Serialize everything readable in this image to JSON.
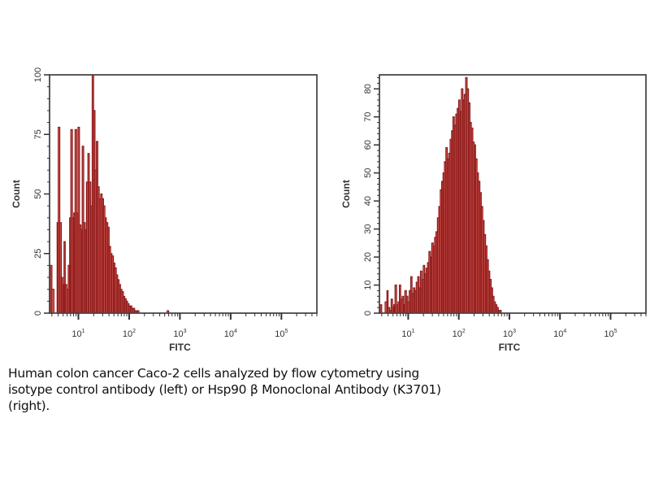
{
  "chart_data": [
    {
      "type": "histogram",
      "panel": "left",
      "subtitle": "isotype control antibody",
      "xlabel": "FITC",
      "ylabel": "Count",
      "xscale": "log",
      "xlim": [
        2.7,
        500000
      ],
      "ylim": [
        0,
        100
      ],
      "x_tick_labels": [
        "10",
        "10",
        "10",
        "10",
        "10"
      ],
      "x_tick_exponents": [
        "1",
        "2",
        "3",
        "4",
        "5"
      ],
      "x_tick_values": [
        10,
        100,
        1000,
        10000,
        100000
      ],
      "y_tick_labels": [
        "0",
        "25",
        "50",
        "75",
        "100"
      ],
      "y_tick_values": [
        0,
        25,
        50,
        75,
        100
      ],
      "fill_color": "#f07068",
      "line_color": "#8b1a1a",
      "bins": [
        [
          2.8,
          20
        ],
        [
          3.0,
          10
        ],
        [
          3.3,
          0
        ],
        [
          3.5,
          0
        ],
        [
          3.8,
          38
        ],
        [
          4.0,
          78
        ],
        [
          4.3,
          38
        ],
        [
          4.6,
          15
        ],
        [
          4.9,
          12
        ],
        [
          5.2,
          30
        ],
        [
          5.5,
          12
        ],
        [
          5.9,
          10
        ],
        [
          6.3,
          20
        ],
        [
          6.7,
          40
        ],
        [
          7.1,
          77
        ],
        [
          7.6,
          40
        ],
        [
          8.1,
          42
        ],
        [
          8.6,
          77
        ],
        [
          9.2,
          42
        ],
        [
          9.8,
          78
        ],
        [
          10.5,
          37
        ],
        [
          11.2,
          35
        ],
        [
          11.9,
          70
        ],
        [
          12.7,
          38
        ],
        [
          13.5,
          35
        ],
        [
          14.4,
          55
        ],
        [
          15.4,
          67
        ],
        [
          16.4,
          55
        ],
        [
          17.5,
          45
        ],
        [
          18.7,
          100
        ],
        [
          19.9,
          85
        ],
        [
          21.2,
          60
        ],
        [
          22.6,
          72
        ],
        [
          24.1,
          53
        ],
        [
          25.7,
          48
        ],
        [
          27.4,
          50
        ],
        [
          29.2,
          48
        ],
        [
          31.2,
          45
        ],
        [
          33.2,
          40
        ],
        [
          35.4,
          38
        ],
        [
          37.8,
          36
        ],
        [
          40.3,
          28
        ],
        [
          43.0,
          25
        ],
        [
          45.8,
          24
        ],
        [
          48.9,
          21
        ],
        [
          52.1,
          19
        ],
        [
          55.6,
          16
        ],
        [
          59.3,
          14
        ],
        [
          63.2,
          12
        ],
        [
          67.4,
          10
        ],
        [
          71.9,
          9
        ],
        [
          76.7,
          7
        ],
        [
          81.8,
          6
        ],
        [
          87.2,
          5
        ],
        [
          93.0,
          4
        ],
        [
          99.2,
          3
        ],
        [
          105.8,
          3
        ],
        [
          112.8,
          2
        ],
        [
          120.3,
          2
        ],
        [
          128.3,
          1
        ],
        [
          136.8,
          1
        ],
        [
          145.9,
          1
        ],
        [
          155.6,
          0
        ],
        [
          500,
          0
        ],
        [
          560,
          1
        ],
        [
          600,
          0
        ]
      ]
    },
    {
      "type": "histogram",
      "panel": "right",
      "subtitle": "Hsp90 β Monoclonal Antibody (K3701)",
      "xlabel": "FITC",
      "ylabel": "Count",
      "xscale": "log",
      "xlim": [
        2.7,
        500000
      ],
      "ylim": [
        0,
        85
      ],
      "x_tick_labels": [
        "10",
        "10",
        "10",
        "10",
        "10"
      ],
      "x_tick_exponents": [
        "1",
        "2",
        "3",
        "4",
        "5"
      ],
      "x_tick_values": [
        10,
        100,
        1000,
        10000,
        100000
      ],
      "y_tick_labels": [
        "0",
        "10",
        "20",
        "30",
        "40",
        "50",
        "60",
        "70",
        "80"
      ],
      "y_tick_values": [
        0,
        10,
        20,
        30,
        40,
        50,
        60,
        70,
        80
      ],
      "fill_color": "#f07068",
      "line_color": "#8b1a1a",
      "bins": [
        [
          2.8,
          3
        ],
        [
          3.0,
          0
        ],
        [
          3.3,
          0
        ],
        [
          3.5,
          4
        ],
        [
          3.8,
          8
        ],
        [
          4.0,
          2
        ],
        [
          4.3,
          1
        ],
        [
          4.6,
          5
        ],
        [
          4.9,
          2
        ],
        [
          5.2,
          3
        ],
        [
          5.5,
          10
        ],
        [
          5.9,
          3
        ],
        [
          6.3,
          4
        ],
        [
          6.7,
          10
        ],
        [
          7.1,
          5
        ],
        [
          7.6,
          6
        ],
        [
          8.1,
          3
        ],
        [
          8.6,
          8
        ],
        [
          9.2,
          6
        ],
        [
          9.8,
          4
        ],
        [
          10.5,
          8
        ],
        [
          11.2,
          13
        ],
        [
          11.9,
          7
        ],
        [
          12.7,
          9
        ],
        [
          13.5,
          8
        ],
        [
          14.4,
          11
        ],
        [
          15.4,
          13
        ],
        [
          16.4,
          9
        ],
        [
          17.5,
          15
        ],
        [
          18.7,
          12
        ],
        [
          19.9,
          17
        ],
        [
          21.2,
          14
        ],
        [
          22.6,
          16
        ],
        [
          24.1,
          18
        ],
        [
          25.7,
          22
        ],
        [
          27.4,
          20
        ],
        [
          29.2,
          25
        ],
        [
          31.2,
          24
        ],
        [
          33.2,
          27
        ],
        [
          35.4,
          29
        ],
        [
          37.8,
          34
        ],
        [
          40.3,
          38
        ],
        [
          43.0,
          44
        ],
        [
          45.8,
          47
        ],
        [
          48.9,
          50
        ],
        [
          52.1,
          54
        ],
        [
          55.6,
          59
        ],
        [
          59.3,
          55
        ],
        [
          63.2,
          57
        ],
        [
          67.4,
          62
        ],
        [
          71.9,
          65
        ],
        [
          76.7,
          70
        ],
        [
          81.8,
          67
        ],
        [
          87.2,
          71
        ],
        [
          93.0,
          73
        ],
        [
          99.2,
          76
        ],
        [
          105.8,
          72
        ],
        [
          112.8,
          80
        ],
        [
          120.3,
          76
        ],
        [
          128.3,
          78
        ],
        [
          136.8,
          84
        ],
        [
          145.9,
          80
        ],
        [
          155.6,
          75
        ],
        [
          166.0,
          68
        ],
        [
          177.0,
          66
        ],
        [
          188.8,
          61
        ],
        [
          201.4,
          60
        ],
        [
          214.8,
          55
        ],
        [
          229.1,
          50
        ],
        [
          244.4,
          47
        ],
        [
          260.7,
          43
        ],
        [
          278.0,
          38
        ],
        [
          296.5,
          33
        ],
        [
          316.3,
          28
        ],
        [
          337.4,
          24
        ],
        [
          359.9,
          19
        ],
        [
          383.9,
          15
        ],
        [
          409.5,
          12
        ],
        [
          436.8,
          9
        ],
        [
          465.9,
          6
        ],
        [
          497.0,
          4
        ],
        [
          530.1,
          3
        ],
        [
          565.5,
          2
        ],
        [
          603.2,
          1
        ],
        [
          643.4,
          1
        ],
        [
          686.3,
          0
        ]
      ]
    }
  ],
  "caption": {
    "line1": "Human colon cancer Caco-2 cells analyzed by flow cytometry using",
    "line2": "isotype control antibody (left) or Hsp90 β Monoclonal Antibody (K3701)",
    "line3": "(right)."
  }
}
